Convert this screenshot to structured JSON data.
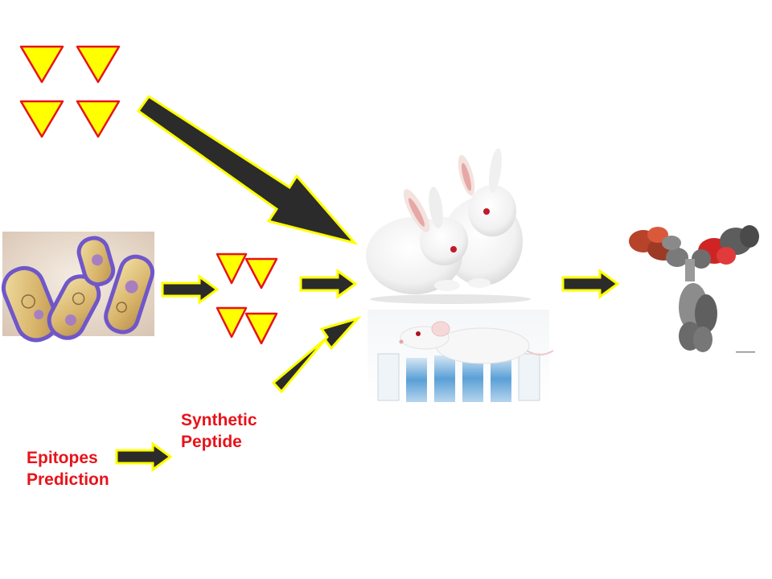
{
  "labels": {
    "synthetic_line1": "Synthetic",
    "synthetic_line2": "Peptide",
    "epitopes_line1": "Epitopes",
    "epitopes_line2": "Prediction"
  },
  "icons": {
    "antigen_triangle": "antigen-triangle-icon",
    "arrow": "arrow-icon",
    "bacteria": "bacteria-cells",
    "rabbits": "white-rabbits",
    "mouse": "lab-mouse",
    "antibody": "antibody-structure"
  },
  "colors": {
    "triangle_fill": "#ffff00",
    "triangle_stroke": "#e8131a",
    "arrow_fill": "#2b2b2b",
    "arrow_stroke": "#ffff00",
    "label_text": "#e8131a"
  }
}
